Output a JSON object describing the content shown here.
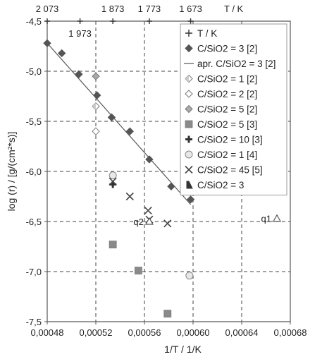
{
  "chart_data": {
    "type": "scatter",
    "title": "",
    "xlabel": "1/T / 1/K",
    "ylabel": "log (r) / [g/(cm²*s)]",
    "top_axis_label": "T / K",
    "xlim": [
      0.00048,
      0.00068
    ],
    "ylim": [
      -7.5,
      -4.5
    ],
    "x_ticks": [
      0.00048,
      0.00052,
      0.00056,
      0.0006,
      0.00064,
      0.00068
    ],
    "x_tick_labels": [
      "0,00048",
      "0,00052",
      "0,00056",
      "0,00060",
      "0,00064",
      "0,00068"
    ],
    "y_ticks": [
      -4.5,
      -5.0,
      -5.5,
      -6.0,
      -6.5,
      -7.0,
      -7.5
    ],
    "y_tick_labels": [
      "-4,5",
      "-5,0",
      "-5,5",
      "-6,0",
      "-6,5",
      "-7,0",
      "-7,5"
    ],
    "top_ticks": [
      {
        "x": 0.00048,
        "label": "2 073",
        "row": 0
      },
      {
        "x": 0.000507,
        "label": "1 973",
        "row": 1
      },
      {
        "x": 0.000534,
        "label": "1 873",
        "row": 0
      },
      {
        "x": 0.000564,
        "label": "1 773",
        "row": 0
      },
      {
        "x": 0.000598,
        "label": "1 673",
        "row": 0
      }
    ],
    "grid": "dashed",
    "legend_position": "top-right",
    "series": [
      {
        "name": "T / K",
        "marker": "plus",
        "color": "#555555",
        "x": [
          0.00048,
          0.000507,
          0.000534,
          0.000564,
          0.000598
        ],
        "y": [
          -4.5,
          -4.5,
          -4.5,
          -4.5,
          -4.5
        ]
      },
      {
        "name": "C/SiO2 = 3 [2]",
        "marker": "diamond",
        "color": "#555555",
        "x": [
          0.00048,
          0.000492,
          0.000506,
          0.000521,
          0.000533,
          0.000548,
          0.000564,
          0.000582,
          0.000598
        ],
        "y": [
          -4.72,
          -4.82,
          -5.03,
          -5.24,
          -5.46,
          -5.6,
          -5.88,
          -6.15,
          -6.28
        ]
      },
      {
        "name": "apr. C/SiO2 = 3 [2]",
        "marker": "line",
        "color": "#555555",
        "x": [
          0.00048,
          0.000598
        ],
        "y": [
          -4.72,
          -6.33
        ]
      },
      {
        "name": "C/SiO2 = 1 [2]",
        "marker": "diamond-half",
        "color": "#777777",
        "x": [
          0.00052
        ],
        "y": [
          -5.35
        ]
      },
      {
        "name": "C/SiO2 = 2 [2]",
        "marker": "diamond-open",
        "color": "#777777",
        "x": [
          0.00052
        ],
        "y": [
          -5.6
        ]
      },
      {
        "name": "C/SiO2 = 5 [2]",
        "marker": "diamond-light",
        "color": "#aaaaaa",
        "x": [
          0.00052
        ],
        "y": [
          -5.05
        ]
      },
      {
        "name": "C/SiO2 = 5 [3]",
        "marker": "square",
        "color": "#8a8a8a",
        "x": [
          0.000534,
          0.000555,
          0.000579
        ],
        "y": [
          -6.73,
          -6.99,
          -7.42
        ]
      },
      {
        "name": "C/SiO2 = 10 [3]",
        "marker": "cross-bold",
        "color": "#333333",
        "x": [
          0.000534
        ],
        "y": [
          -6.13
        ]
      },
      {
        "name": "C/SiO2 = 1 [4]",
        "marker": "circle",
        "color": "#888888",
        "x": [
          0.000534,
          0.000597
        ],
        "y": [
          -6.04,
          -7.04
        ]
      },
      {
        "name": "C/SiO2 = 45 [5]",
        "marker": "x",
        "color": "#444444",
        "x": [
          0.000534,
          0.000548,
          0.000563,
          0.000564,
          0.000579
        ],
        "y": [
          -6.1,
          -6.25,
          -6.39,
          -6.48,
          -6.52
        ]
      },
      {
        "name": "C/SiO2 = 3",
        "marker": "triangle",
        "color": "#555555",
        "x": [
          0.000564,
          0.000669
        ],
        "y": [
          -6.5,
          -6.47
        ]
      }
    ],
    "annotations": [
      {
        "text": "q1",
        "x": 0.000669,
        "y": -6.47,
        "side": "left"
      },
      {
        "text": "q2",
        "x": 0.000564,
        "y": -6.5,
        "side": "left"
      }
    ]
  }
}
